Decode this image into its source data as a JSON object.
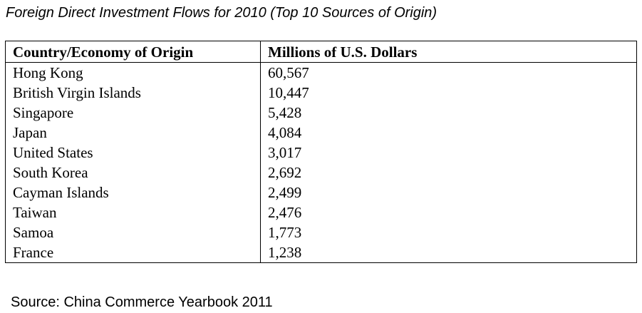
{
  "title": "Foreign Direct Investment Flows for 2010 (Top 10 Sources of Origin)",
  "table": {
    "headers": {
      "country": "Country/Economy of Origin",
      "value": "Millions of U.S. Dollars"
    },
    "rows": [
      {
        "country": "Hong Kong",
        "value": "60,567"
      },
      {
        "country": "British Virgin Islands",
        "value": "10,447"
      },
      {
        "country": "Singapore",
        "value": "5,428"
      },
      {
        "country": "Japan",
        "value": "4,084"
      },
      {
        "country": "United States",
        "value": "3,017"
      },
      {
        "country": "South Korea",
        "value": "2,692"
      },
      {
        "country": "Cayman Islands",
        "value": "2,499"
      },
      {
        "country": "Taiwan",
        "value": "2,476"
      },
      {
        "country": "Samoa",
        "value": "1,773"
      },
      {
        "country": "France",
        "value": "1,238"
      }
    ]
  },
  "source": "Source: China Commerce Yearbook 2011"
}
